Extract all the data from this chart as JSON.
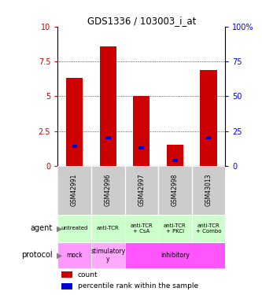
{
  "title": "GDS1336 / 103003_i_at",
  "samples": [
    "GSM42991",
    "GSM42996",
    "GSM42997",
    "GSM42998",
    "GSM43013"
  ],
  "count_values": [
    6.3,
    8.6,
    5.0,
    1.5,
    6.9
  ],
  "percentile_values": [
    1.4,
    2.0,
    1.3,
    0.4,
    2.0
  ],
  "bar_color": "#cc0000",
  "percentile_color": "#0000cc",
  "ylim_left": [
    0,
    10
  ],
  "ylim_right": [
    0,
    100
  ],
  "yticks_left": [
    0,
    2.5,
    5,
    7.5,
    10
  ],
  "yticks_right": [
    0,
    25,
    50,
    75,
    100
  ],
  "ytick_labels_left": [
    "0",
    "2.5",
    "5",
    "7.5",
    "10"
  ],
  "ytick_labels_right": [
    "0",
    "25",
    "50",
    "75",
    "100%"
  ],
  "agent_labels": [
    "untreated",
    "anti-TCR",
    "anti-TCR\n+ CsA",
    "anti-TCR\n+ PKCi",
    "anti-TCR\n+ Combo"
  ],
  "agent_bg": "#ccffcc",
  "protocol_mock_bg": "#ff99ff",
  "protocol_stimulatory_bg": "#ffaaff",
  "protocol_inhibitory_bg": "#ff55ff",
  "sample_bg": "#cccccc",
  "bar_width": 0.5,
  "left_tick_color": "#cc0000",
  "right_tick_color": "#0000cc"
}
